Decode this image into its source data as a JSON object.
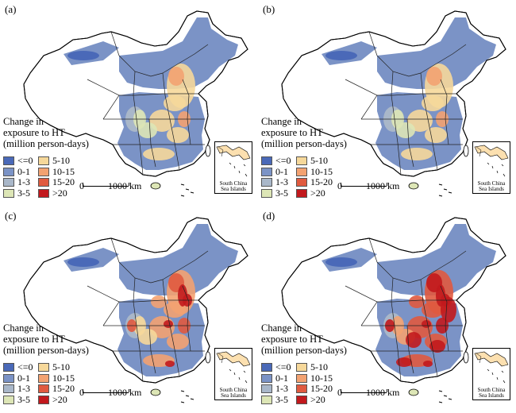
{
  "panels": [
    {
      "label": "(a)",
      "intensity": 1
    },
    {
      "label": "(b)",
      "intensity": 1
    },
    {
      "label": "(c)",
      "intensity": 2
    },
    {
      "label": "(d)",
      "intensity": 3
    }
  ],
  "legend": {
    "title_line1": "Change in",
    "title_line2": "exposure to HT",
    "title_line3": "(million person-days)",
    "items": [
      {
        "label": "<=0",
        "color": "#4a69b8"
      },
      {
        "label": "0-1",
        "color": "#7b93c6"
      },
      {
        "label": "1-3",
        "color": "#a9b7c9"
      },
      {
        "label": "3-5",
        "color": "#dde6b6"
      },
      {
        "label": "5-10",
        "color": "#f6d89a"
      },
      {
        "label": "10-15",
        "color": "#f3a271"
      },
      {
        "label": "15-20",
        "color": "#e05a3f"
      },
      {
        "label": ">20",
        "color": "#c2191d"
      }
    ]
  },
  "scale": {
    "zero": "0",
    "distance": "1000 km"
  },
  "inset_caption_line1": "South China",
  "inset_caption_line2": "Sea Islands"
}
